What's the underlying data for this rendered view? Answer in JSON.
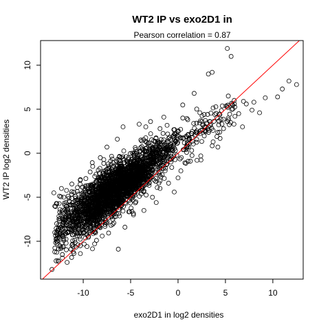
{
  "chart_data": {
    "type": "scatter",
    "title": "WT2 IP vs exo2D1 in",
    "subtitle": "Pearson correlation =  0.87",
    "xlabel": "exo2D1 in log2 densities",
    "ylabel": "WT2 IP log2 densities",
    "xlim": [
      -14.5,
      13.2
    ],
    "ylim": [
      -14.3,
      12.8
    ],
    "x_ticks": [
      -10,
      -5,
      0,
      5,
      10
    ],
    "x_tick_labels": [
      "-10",
      "-5",
      "0",
      "5",
      "10"
    ],
    "y_ticks": [
      -10,
      -5,
      0,
      5,
      10
    ],
    "y_tick_labels": [
      "-10",
      "-5",
      "0",
      "5",
      "10"
    ],
    "grid": false,
    "legend": "none",
    "point_color": "#000000",
    "reference_line": {
      "type": "identity",
      "slope": 1,
      "intercept": 0,
      "color": "#ff0000"
    },
    "outlier_points": [
      {
        "x": 5.2,
        "y": 11.9
      },
      {
        "x": 5.6,
        "y": 11.0
      },
      {
        "x": 3.2,
        "y": 9.0
      },
      {
        "x": 3.6,
        "y": 9.2
      },
      {
        "x": 1.7,
        "y": 6.8
      },
      {
        "x": 5.3,
        "y": 6.5
      },
      {
        "x": 12.5,
        "y": 7.8
      },
      {
        "x": 11.7,
        "y": 8.2
      },
      {
        "x": 11.0,
        "y": 7.3
      },
      {
        "x": 10.5,
        "y": 6.4
      },
      {
        "x": 9.2,
        "y": 6.3
      },
      {
        "x": 8.0,
        "y": 5.8
      },
      {
        "x": 7.2,
        "y": 5.6
      },
      {
        "x": 6.9,
        "y": 5.9
      },
      {
        "x": 7.8,
        "y": 4.9
      },
      {
        "x": 8.6,
        "y": 4.6
      },
      {
        "x": 6.4,
        "y": 4.5
      },
      {
        "x": 6.0,
        "y": 4.2
      },
      {
        "x": 5.2,
        "y": 3.6
      },
      {
        "x": 5.9,
        "y": 3.3
      },
      {
        "x": 4.8,
        "y": 2.8
      },
      {
        "x": 4.4,
        "y": 2.4
      },
      {
        "x": 6.8,
        "y": 3.0
      },
      {
        "x": 3.7,
        "y": 2.6
      },
      {
        "x": 4.1,
        "y": 1.9
      },
      {
        "x": 2.3,
        "y": 4.6
      },
      {
        "x": -1.5,
        "y": 4.1
      },
      {
        "x": 0.5,
        "y": 4.0
      },
      {
        "x": 2.6,
        "y": 3.2
      },
      {
        "x": 3.2,
        "y": 3.0
      },
      {
        "x": 3.7,
        "y": 1.3
      },
      {
        "x": 4.2,
        "y": 0.7
      },
      {
        "x": -13.3,
        "y": -13.2
      },
      {
        "x": -12.6,
        "y": -12.3
      },
      {
        "x": -12.2,
        "y": -11.9
      },
      {
        "x": -13.0,
        "y": -11.2
      },
      {
        "x": -12.8,
        "y": -10.0
      },
      {
        "x": -13.0,
        "y": -9.0
      },
      {
        "x": -12.8,
        "y": -8.0
      },
      {
        "x": -13.0,
        "y": -6.0
      },
      {
        "x": -13.1,
        "y": -4.5
      },
      {
        "x": -12.3,
        "y": -4.0
      },
      {
        "x": -11.2,
        "y": -3.5
      },
      {
        "x": -10.3,
        "y": -3.0
      },
      {
        "x": -9.0,
        "y": -1.5
      },
      {
        "x": -8.2,
        "y": -0.5
      },
      {
        "x": -7.5,
        "y": 0.7
      },
      {
        "x": -6.4,
        "y": 1.6
      },
      {
        "x": -5.8,
        "y": 3.0
      },
      {
        "x": -4.1,
        "y": 3.3
      },
      {
        "x": -2.9,
        "y": 3.6
      },
      {
        "x": -3.4,
        "y": 3.0
      },
      {
        "x": -1.9,
        "y": 2.8
      },
      {
        "x": -9.9,
        "y": -9.0
      },
      {
        "x": -8.8,
        "y": -10.3
      },
      {
        "x": -8.0,
        "y": -9.4
      },
      {
        "x": -6.3,
        "y": -10.9
      },
      {
        "x": -5.6,
        "y": -8.4
      },
      {
        "x": -4.7,
        "y": -7.0
      },
      {
        "x": -3.6,
        "y": -6.5
      },
      {
        "x": -2.7,
        "y": -5.0
      },
      {
        "x": -1.9,
        "y": -4.0
      },
      {
        "x": -1.0,
        "y": -3.4
      },
      {
        "x": 0.3,
        "y": -2.0
      },
      {
        "x": 1.3,
        "y": -0.9
      },
      {
        "x": 2.4,
        "y": -0.3
      },
      {
        "x": 2.0,
        "y": -0.8
      },
      {
        "x": 0.0,
        "y": -2.8
      },
      {
        "x": -0.4,
        "y": -4.4
      },
      {
        "x": -2.3,
        "y": -5.6
      },
      {
        "x": -10.3,
        "y": -11.4
      },
      {
        "x": -9.6,
        "y": -10.6
      },
      {
        "x": -11.3,
        "y": -10.9
      },
      {
        "x": -11.8,
        "y": -10.2
      }
    ]
  }
}
